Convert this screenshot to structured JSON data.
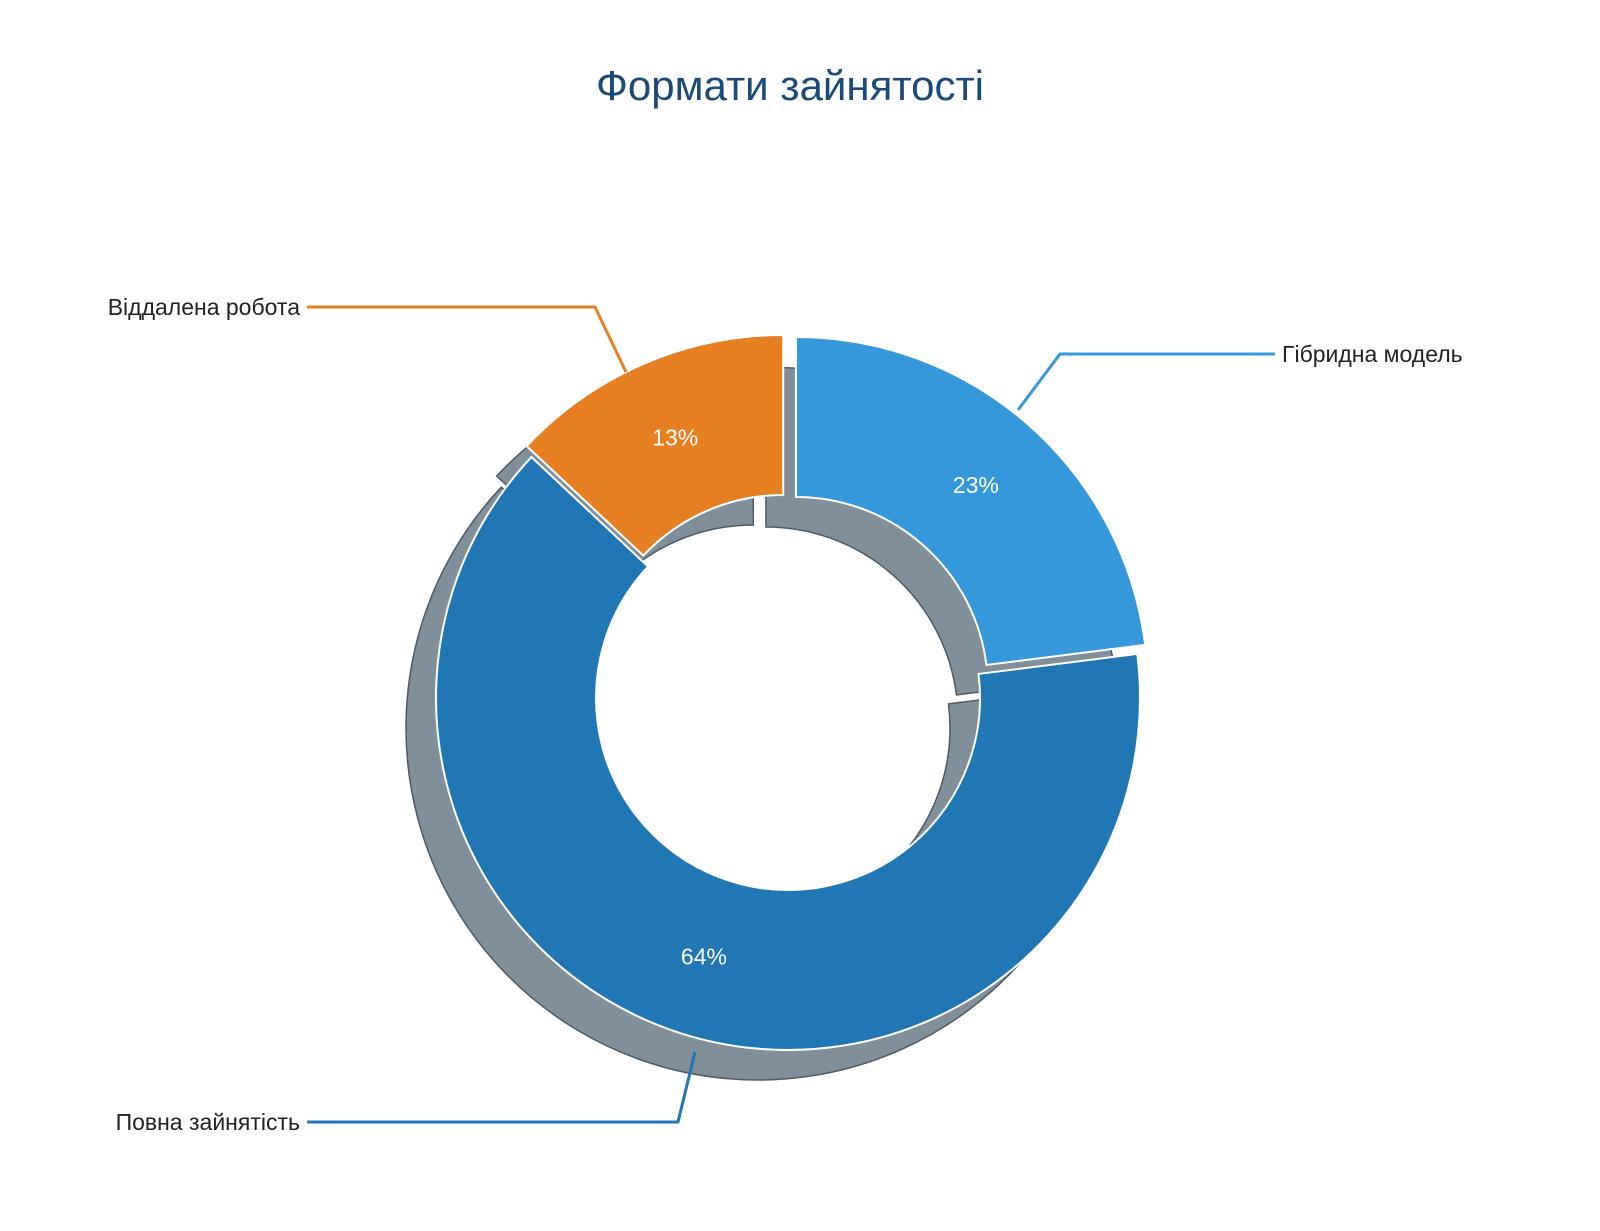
{
  "chart_data": {
    "type": "pie",
    "variant": "donut",
    "title": "Формати зайнятості",
    "slices": [
      {
        "label": "Гібридна модель",
        "value": 23,
        "value_label": "23%",
        "color": "#3598db",
        "exploded": true
      },
      {
        "label": "Повна зайнятість",
        "value": 64,
        "value_label": "64%",
        "color": "#2077b4",
        "exploded": false
      },
      {
        "label": "Віддалена робота",
        "value": 13,
        "value_label": "13%",
        "color": "#e67e22",
        "exploded": true
      }
    ],
    "shadow_color": "#808f99",
    "legend": "none"
  }
}
